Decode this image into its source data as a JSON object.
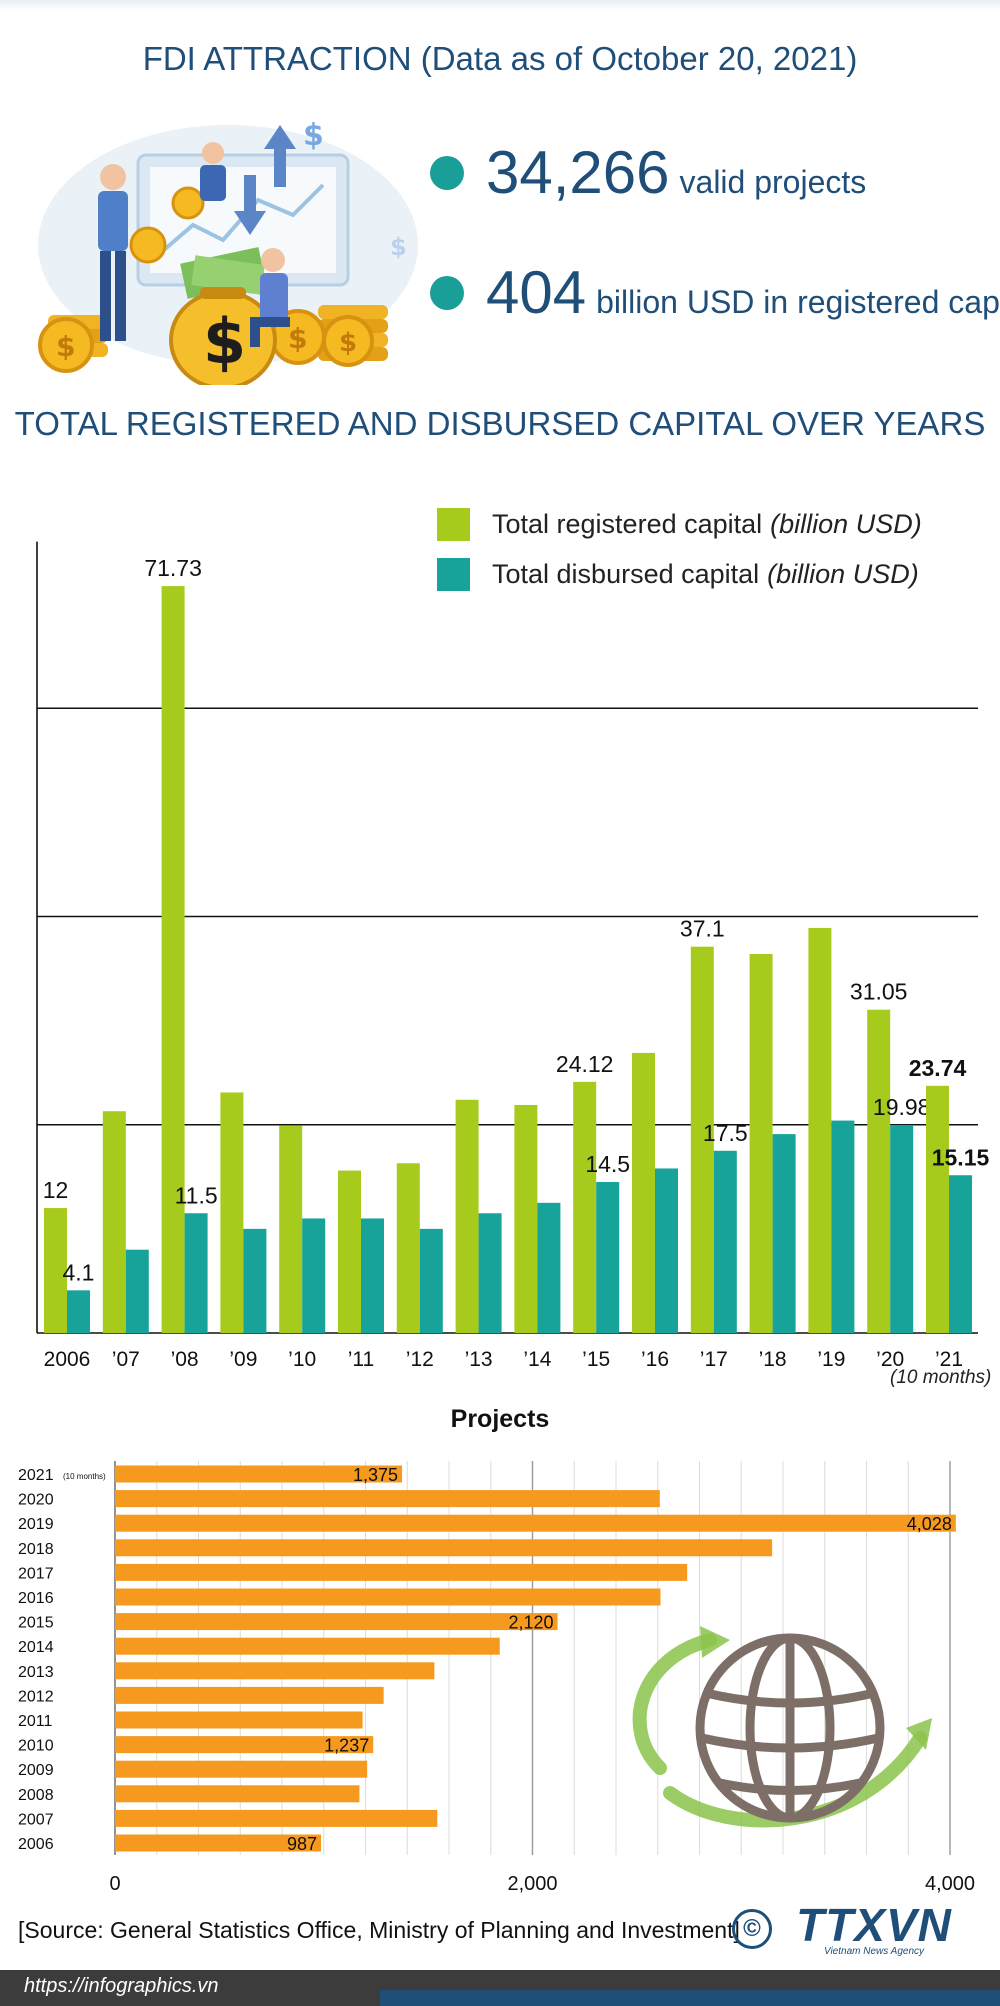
{
  "header": {
    "title": "FDI ATTRACTION (Data as of October 20, 2021)"
  },
  "stats": [
    {
      "value": "34,266",
      "label": "valid projects"
    },
    {
      "value": "404",
      "label": "billion USD in registered capital"
    }
  ],
  "colors": {
    "registered": "#a6cb1c",
    "disbursed": "#17a399",
    "projects": "#f59a1e",
    "title": "#1f4e79"
  },
  "chart_data": [
    {
      "type": "bar",
      "title": "TOTAL REGISTERED AND DISBURSED CAPITAL OVER YEARS",
      "categories": [
        "2006",
        "’07",
        "’08",
        "’09",
        "’10",
        "’11",
        "’12",
        "’13",
        "’14",
        "’15",
        "’16",
        "’17",
        "’18",
        "’19",
        "’20",
        "’21"
      ],
      "category_note": "(10 months)",
      "series": [
        {
          "name": "Total registered capital",
          "unit": "(billion USD)",
          "values": [
            12,
            21.3,
            71.73,
            23.1,
            19.9,
            15.6,
            16.3,
            22.4,
            21.9,
            24.12,
            26.9,
            37.1,
            36.4,
            38.9,
            31.05,
            23.74
          ],
          "labels": [
            "12",
            null,
            "71.73",
            null,
            null,
            null,
            null,
            null,
            null,
            "24.12",
            null,
            "37.1",
            null,
            null,
            "31.05",
            "23.74"
          ]
        },
        {
          "name": "Total disbursed capital",
          "unit": "(billion USD)",
          "values": [
            4.1,
            8.0,
            11.5,
            10.0,
            11.0,
            11.0,
            10.0,
            11.5,
            12.5,
            14.5,
            15.8,
            17.5,
            19.1,
            20.4,
            19.98,
            15.15
          ],
          "labels": [
            "4.1",
            null,
            "11.5",
            null,
            null,
            null,
            null,
            null,
            null,
            "14.5",
            null,
            "17.5",
            null,
            null,
            "19.98",
            "15.15"
          ]
        }
      ],
      "ylim": [
        0,
        80
      ],
      "grid_values": [
        20,
        40,
        60
      ]
    },
    {
      "type": "bar",
      "orientation": "horizontal",
      "title": "Projects",
      "categories": [
        "2021",
        "2020",
        "2019",
        "2018",
        "2017",
        "2016",
        "2015",
        "2014",
        "2013",
        "2012",
        "2011",
        "2010",
        "2009",
        "2008",
        "2007",
        "2006"
      ],
      "first_category_note": "(10 months)",
      "values": [
        1375,
        2610,
        4028,
        3148,
        2741,
        2613,
        2120,
        1843,
        1530,
        1287,
        1186,
        1237,
        1208,
        1171,
        1544,
        987
      ],
      "labels": [
        "1,375",
        null,
        "4,028",
        null,
        null,
        null,
        "2,120",
        null,
        null,
        null,
        null,
        "1,237",
        null,
        null,
        null,
        "987"
      ],
      "xlim": [
        0,
        4000
      ],
      "xticks": [
        0,
        2000,
        4000
      ],
      "xtick_labels": [
        "0",
        "2,000",
        "4,000"
      ]
    }
  ],
  "source": "[Source: General Statistics Office, Ministry of Planning and Investment]",
  "copyright_symbol": "©",
  "logo": {
    "text": "TTXVN",
    "subtitle": "Vietnam News Agency"
  },
  "footer": {
    "url": "https://infographics.vn"
  }
}
